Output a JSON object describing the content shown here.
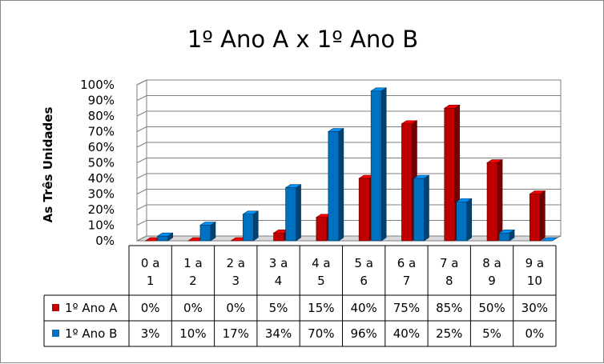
{
  "chart_data": {
    "type": "bar",
    "title": "1º Ano A x 1º Ano B",
    "ylabel": "As Três Unidades",
    "xlabel": "",
    "ylim": [
      0,
      100
    ],
    "ytick_labels": [
      "0%",
      "10%",
      "20%",
      "30%",
      "40%",
      "50%",
      "60%",
      "70%",
      "80%",
      "90%",
      "100%"
    ],
    "categories": [
      [
        "0 a",
        "1"
      ],
      [
        "1 a",
        "2"
      ],
      [
        "2 a",
        "3"
      ],
      [
        "3 a",
        "4"
      ],
      [
        "4 a",
        "5"
      ],
      [
        "5 a",
        "6"
      ],
      [
        "6 a",
        "7"
      ],
      [
        "7 a",
        "8"
      ],
      [
        "8 a",
        "9"
      ],
      [
        "9 a",
        "10"
      ]
    ],
    "series": [
      {
        "name": "1º Ano A",
        "color": "#c00000",
        "values": [
          0,
          0,
          0,
          5,
          15,
          40,
          75,
          85,
          50,
          30
        ],
        "labels": [
          "0%",
          "0%",
          "0%",
          "5%",
          "15%",
          "40%",
          "75%",
          "85%",
          "50%",
          "30%"
        ]
      },
      {
        "name": "1º Ano B",
        "color": "#0070c0",
        "values": [
          3,
          10,
          17,
          34,
          70,
          96,
          40,
          25,
          5,
          0
        ],
        "labels": [
          "3%",
          "10%",
          "17%",
          "34%",
          "70%",
          "96%",
          "40%",
          "25%",
          "5%",
          "0%"
        ]
      }
    ],
    "grid": true,
    "legend": "data-table",
    "style": "3d-clustered-column"
  }
}
